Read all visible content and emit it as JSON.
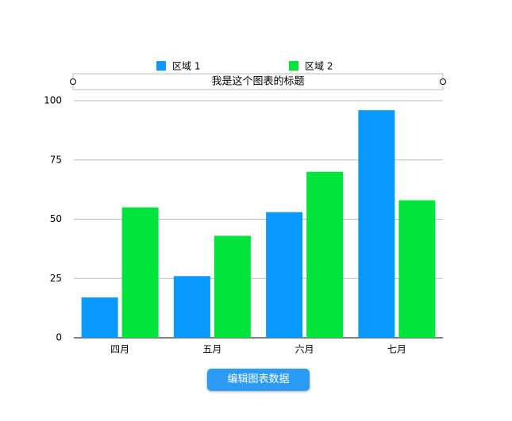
{
  "chart_data": {
    "type": "bar",
    "title": "我是这个图表的标题",
    "categories": [
      "四月",
      "五月",
      "六月",
      "七月"
    ],
    "series": [
      {
        "name": "区域 1",
        "color": "#0a99ff",
        "values": [
          17,
          26,
          53,
          96
        ]
      },
      {
        "name": "区域 2",
        "color": "#00e43c",
        "values": [
          55,
          43,
          70,
          58
        ]
      }
    ],
    "ylim": [
      0,
      100
    ],
    "yticks": [
      0,
      25,
      50,
      75,
      100
    ],
    "grid": true
  },
  "button": {
    "label": "编辑图表数据"
  }
}
